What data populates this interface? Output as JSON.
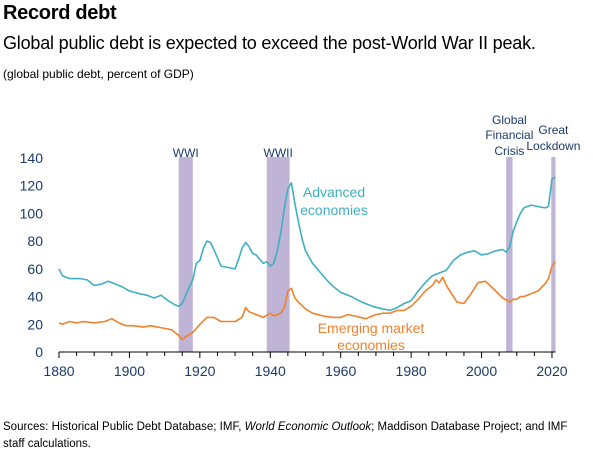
{
  "title": "Record debt",
  "subtitle": "Global public debt is expected to exceed the post-World War II peak.",
  "units_note": "(global public debt, percent of GDP)",
  "source": {
    "prefix": "Sources: Historical Public Debt Database; IMF, ",
    "italic": "World Economic Outlook",
    "suffix": "; Maddison Database Project; and IMF staff calculations."
  },
  "colors": {
    "advanced": "#3fb0c0",
    "emerging": "#f0822d",
    "shade": "#b4a6cf",
    "event_text": "#1b3a6b",
    "axis_text": "#1b3a6b"
  },
  "chart_data": {
    "type": "line",
    "xlim": [
      1880,
      2021
    ],
    "ylim": [
      0,
      140
    ],
    "x_ticks": [
      1880,
      1900,
      1920,
      1940,
      1960,
      1980,
      2000,
      2020
    ],
    "y_ticks": [
      0,
      20,
      40,
      60,
      80,
      100,
      120,
      140
    ],
    "grid": false,
    "events": [
      {
        "label": [
          "WWI"
        ],
        "start": 1914,
        "end": 1918
      },
      {
        "label": [
          "WWII"
        ],
        "start": 1939,
        "end": 1945.5
      },
      {
        "label": [
          "Global",
          "Financial",
          "Crisis"
        ],
        "start": 2007,
        "end": 2008.8
      },
      {
        "label": [
          "Great",
          "Lockdown"
        ],
        "start": 2019.8,
        "end": 2021
      }
    ],
    "series": [
      {
        "name": "Advanced economies",
        "label_lines": [
          "Advanced",
          "economies"
        ],
        "points": [
          [
            1880,
            60
          ],
          [
            1881,
            55
          ],
          [
            1883,
            53
          ],
          [
            1886,
            53
          ],
          [
            1888,
            52
          ],
          [
            1890,
            48
          ],
          [
            1892,
            49
          ],
          [
            1894,
            51
          ],
          [
            1896,
            49
          ],
          [
            1898,
            47
          ],
          [
            1900,
            44
          ],
          [
            1903,
            42
          ],
          [
            1905,
            41
          ],
          [
            1907,
            39
          ],
          [
            1909,
            41
          ],
          [
            1911,
            37
          ],
          [
            1913,
            34
          ],
          [
            1914,
            33
          ],
          [
            1915,
            35
          ],
          [
            1916,
            41
          ],
          [
            1917,
            47
          ],
          [
            1918,
            52
          ],
          [
            1919,
            64
          ],
          [
            1920,
            66
          ],
          [
            1921,
            75
          ],
          [
            1922,
            80
          ],
          [
            1923,
            79
          ],
          [
            1924,
            74
          ],
          [
            1926,
            62
          ],
          [
            1928,
            61
          ],
          [
            1930,
            60
          ],
          [
            1931,
            67
          ],
          [
            1932,
            75
          ],
          [
            1933,
            79
          ],
          [
            1934,
            76
          ],
          [
            1935,
            71
          ],
          [
            1936,
            70
          ],
          [
            1937,
            67
          ],
          [
            1938,
            64
          ],
          [
            1939,
            65
          ],
          [
            1940,
            62
          ],
          [
            1941,
            64
          ],
          [
            1942,
            73
          ],
          [
            1943,
            86
          ],
          [
            1944,
            104
          ],
          [
            1945,
            118
          ],
          [
            1946,
            122
          ],
          [
            1947,
            107
          ],
          [
            1948,
            94
          ],
          [
            1949,
            82
          ],
          [
            1950,
            73
          ],
          [
            1952,
            64
          ],
          [
            1954,
            58
          ],
          [
            1956,
            52
          ],
          [
            1958,
            47
          ],
          [
            1960,
            43
          ],
          [
            1963,
            40
          ],
          [
            1966,
            36
          ],
          [
            1969,
            33
          ],
          [
            1972,
            31
          ],
          [
            1974,
            30
          ],
          [
            1976,
            32
          ],
          [
            1978,
            35
          ],
          [
            1980,
            37
          ],
          [
            1982,
            44
          ],
          [
            1984,
            50
          ],
          [
            1986,
            55
          ],
          [
            1988,
            57
          ],
          [
            1990,
            59
          ],
          [
            1992,
            66
          ],
          [
            1994,
            70
          ],
          [
            1996,
            72
          ],
          [
            1998,
            73
          ],
          [
            2000,
            70
          ],
          [
            2002,
            71
          ],
          [
            2004,
            73
          ],
          [
            2006,
            74
          ],
          [
            2007,
            72
          ],
          [
            2008,
            76
          ],
          [
            2009,
            87
          ],
          [
            2010,
            94
          ],
          [
            2011,
            100
          ],
          [
            2012,
            104
          ],
          [
            2014,
            106
          ],
          [
            2016,
            105
          ],
          [
            2018,
            104
          ],
          [
            2019,
            105
          ],
          [
            2020,
            125
          ],
          [
            2021,
            126
          ]
        ]
      },
      {
        "name": "Emerging market economies",
        "label_lines": [
          "Emerging market",
          "economies"
        ],
        "points": [
          [
            1880,
            21
          ],
          [
            1881,
            20
          ],
          [
            1883,
            22
          ],
          [
            1885,
            21
          ],
          [
            1887,
            22
          ],
          [
            1890,
            21
          ],
          [
            1893,
            22
          ],
          [
            1895,
            24
          ],
          [
            1897,
            21
          ],
          [
            1899,
            19
          ],
          [
            1901,
            19
          ],
          [
            1904,
            18
          ],
          [
            1906,
            19
          ],
          [
            1908,
            18
          ],
          [
            1910,
            17
          ],
          [
            1912,
            16
          ],
          [
            1914,
            12
          ],
          [
            1915,
            9
          ],
          [
            1916,
            11
          ],
          [
            1918,
            14
          ],
          [
            1920,
            20
          ],
          [
            1922,
            25
          ],
          [
            1924,
            25
          ],
          [
            1926,
            22
          ],
          [
            1928,
            22
          ],
          [
            1930,
            22
          ],
          [
            1932,
            25
          ],
          [
            1933,
            32
          ],
          [
            1934,
            29
          ],
          [
            1936,
            27
          ],
          [
            1938,
            25
          ],
          [
            1940,
            28
          ],
          [
            1941,
            26
          ],
          [
            1943,
            28
          ],
          [
            1944,
            32
          ],
          [
            1945,
            44
          ],
          [
            1946,
            46
          ],
          [
            1947,
            39
          ],
          [
            1948,
            36
          ],
          [
            1950,
            31
          ],
          [
            1952,
            28
          ],
          [
            1955,
            26
          ],
          [
            1958,
            25
          ],
          [
            1960,
            25
          ],
          [
            1962,
            27
          ],
          [
            1964,
            26
          ],
          [
            1967,
            24
          ],
          [
            1970,
            27
          ],
          [
            1972,
            28
          ],
          [
            1974,
            28
          ],
          [
            1976,
            30
          ],
          [
            1978,
            30
          ],
          [
            1980,
            33
          ],
          [
            1982,
            38
          ],
          [
            1984,
            44
          ],
          [
            1985,
            46
          ],
          [
            1986,
            48
          ],
          [
            1987,
            52
          ],
          [
            1988,
            50
          ],
          [
            1989,
            54
          ],
          [
            1990,
            48
          ],
          [
            1991,
            44
          ],
          [
            1993,
            36
          ],
          [
            1995,
            35
          ],
          [
            1997,
            42
          ],
          [
            1999,
            50
          ],
          [
            2001,
            51
          ],
          [
            2002,
            49
          ],
          [
            2004,
            44
          ],
          [
            2006,
            39
          ],
          [
            2008,
            36
          ],
          [
            2009,
            38
          ],
          [
            2010,
            38
          ],
          [
            2011,
            40
          ],
          [
            2012,
            40
          ],
          [
            2014,
            42
          ],
          [
            2016,
            44
          ],
          [
            2018,
            49
          ],
          [
            2019,
            53
          ],
          [
            2020,
            62
          ],
          [
            2021,
            65
          ]
        ]
      }
    ]
  }
}
